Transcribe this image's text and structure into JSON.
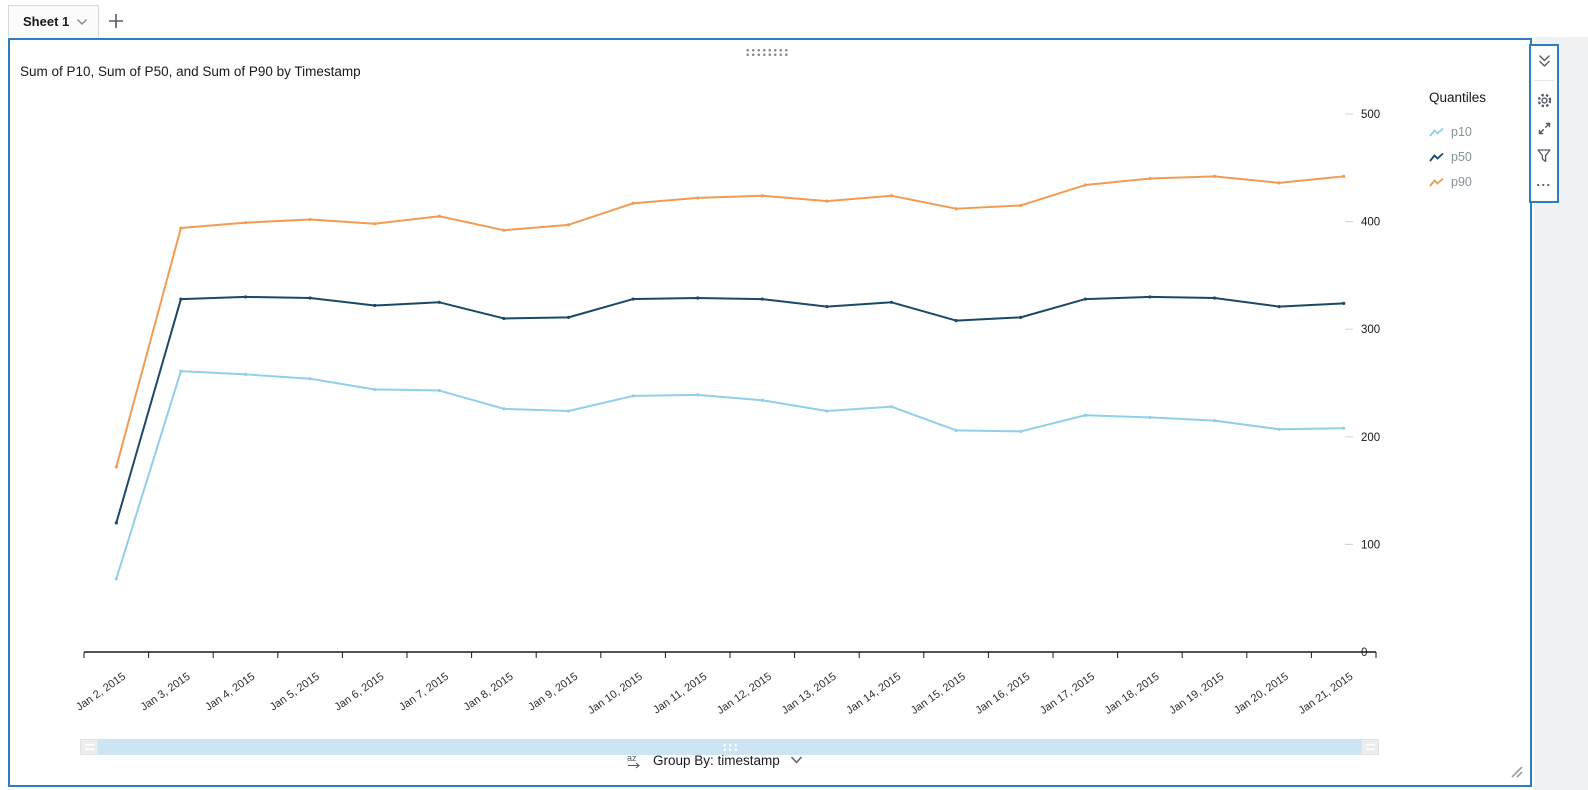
{
  "tabs": {
    "sheet_label": "Sheet 1"
  },
  "visual": {
    "title": "Sum of P10, Sum of P50, and Sum of P90 by Timestamp"
  },
  "legend": {
    "title": "Quantiles",
    "items": [
      {
        "label": "p10",
        "color": "#8FD0E8"
      },
      {
        "label": "p50",
        "color": "#1B4965"
      },
      {
        "label": "p90",
        "color": "#F19B53"
      }
    ]
  },
  "toolbar": {
    "icons": [
      "collapse",
      "settings",
      "maximize",
      "filter",
      "more-options"
    ],
    "more_label": "..."
  },
  "group_by": {
    "label": "Group By: timestamp"
  },
  "slider": {
    "position": "full-range"
  },
  "colors": {
    "selection_border": "#2E7DC1",
    "axis_text": "#2b2f33",
    "tick_dash": "#cfd3d6"
  },
  "chart_data": {
    "type": "line",
    "title": "Sum of P10, Sum of P50, and Sum of P90 by Timestamp",
    "x": [
      "Jan 2, 2015",
      "Jan 3, 2015",
      "Jan 4, 2015",
      "Jan 5, 2015",
      "Jan 6, 2015",
      "Jan 7, 2015",
      "Jan 8, 2015",
      "Jan 9, 2015",
      "Jan 10, 2015",
      "Jan 11, 2015",
      "Jan 12, 2015",
      "Jan 13, 2015",
      "Jan 14, 2015",
      "Jan 15, 2015",
      "Jan 16, 2015",
      "Jan 17, 2015",
      "Jan 18, 2015",
      "Jan 19, 2015",
      "Jan 20, 2015",
      "Jan 21, 2015"
    ],
    "series": [
      {
        "name": "p10",
        "color": "#8FD0E8",
        "values": [
          68,
          261,
          258,
          254,
          244,
          243,
          226,
          224,
          238,
          239,
          234,
          224,
          228,
          206,
          205,
          220,
          218,
          215,
          207,
          208
        ]
      },
      {
        "name": "p50",
        "color": "#1B4965",
        "values": [
          120,
          328,
          330,
          329,
          322,
          325,
          310,
          311,
          328,
          329,
          328,
          321,
          325,
          308,
          311,
          328,
          330,
          329,
          321,
          324
        ]
      },
      {
        "name": "p90",
        "color": "#F19B53",
        "values": [
          172,
          394,
          399,
          402,
          398,
          405,
          392,
          397,
          417,
          422,
          424,
          419,
          424,
          412,
          415,
          434,
          440,
          442,
          436,
          442
        ]
      }
    ],
    "xlabel": "",
    "ylabel": "",
    "ylim": [
      0,
      500
    ],
    "yticks": [
      0,
      100,
      200,
      300,
      400,
      500
    ],
    "grid": false,
    "legend_position": "right",
    "legend_title": "Quantiles"
  }
}
